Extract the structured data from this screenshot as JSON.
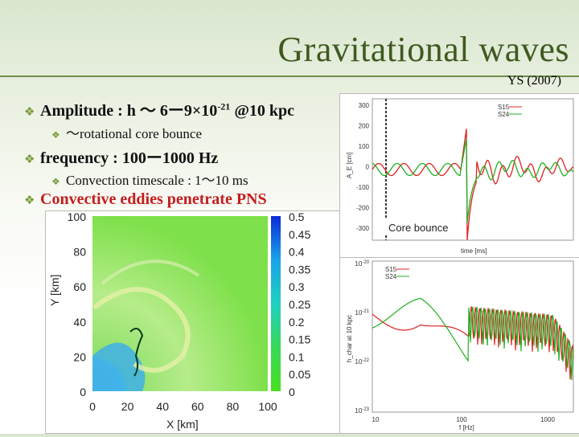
{
  "slide": {
    "title": "Gravitational waves",
    "reference": "YS (2007)",
    "bullets": [
      {
        "level": 1,
        "parts": [
          "Amplitude : h ～ 6ー9×10",
          "-21",
          "@10 kpc"
        ]
      },
      {
        "level": 2,
        "text": "～rotational core bounce"
      },
      {
        "level": 1,
        "text": "frequency : 100ー1000 Hz"
      },
      {
        "level": 2,
        "text": "Convection timescale : 1～10 ms"
      },
      {
        "level": 1,
        "text": "Convective eddies penetrate PNS"
      }
    ]
  },
  "sim_image": {
    "x_label": "X [km]",
    "y_label": "Y [km]",
    "x_ticks": [
      "0",
      "20",
      "40",
      "60",
      "80",
      "100"
    ],
    "y_ticks": [
      "100",
      "80",
      "60",
      "40",
      "20",
      "0"
    ],
    "colorbar_ticks": [
      "0.5",
      "0.45",
      "0.4",
      "0.35",
      "0.3",
      "0.25",
      "0.2",
      "0.15",
      "0.1",
      "0.05",
      "0"
    ]
  },
  "chart_data": [
    {
      "type": "line",
      "xlabel": "time [ms]",
      "ylabel": "A_E [cm]",
      "ylim": [
        -350,
        350
      ],
      "y_ticks": [
        "300",
        "200",
        "100",
        "0",
        "-100",
        "-200",
        "-300"
      ],
      "series": [
        {
          "name": "S15",
          "color": "#e02020"
        },
        {
          "name": "S24",
          "color": "#20b020"
        }
      ],
      "annotation": "Core bounce"
    },
    {
      "type": "line",
      "xlabel": "f [Hz]",
      "ylabel": "h_char at 10 kpc",
      "x_ticks": [
        "10",
        "100",
        "1000"
      ],
      "y_ticks": [
        "10",
        "10",
        "10",
        "10"
      ],
      "y_tick_exp": [
        "-20",
        "-21",
        "-22",
        "-23"
      ],
      "series": [
        {
          "name": "S15",
          "color": "#e02020"
        },
        {
          "name": "S24",
          "color": "#20b020"
        }
      ]
    }
  ],
  "colors": {
    "title": "#3f5a1f",
    "accent_bullet": "#7a9a3a",
    "highlight": "#c41e1e"
  }
}
